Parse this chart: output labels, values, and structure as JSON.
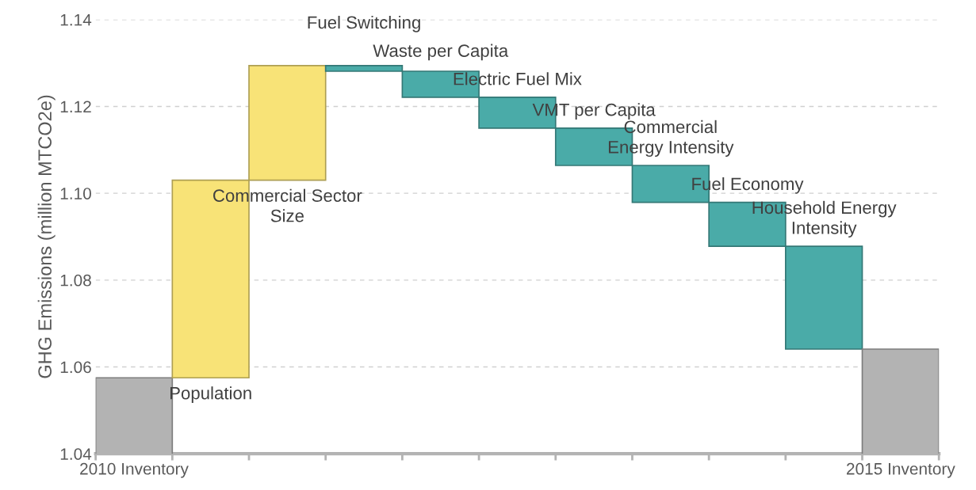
{
  "chart_data": {
    "type": "bar",
    "ylabel": "GHG Emissions (million MTCO2e)",
    "categories": [
      "2010 Inventory",
      null,
      null,
      null,
      null,
      null,
      null,
      null,
      null,
      null,
      "2015 Inventory"
    ],
    "annotations": [
      "Population",
      "Commercial Sector\nSize",
      "Fuel Switching",
      "Waste per Capita",
      "Electric Fuel Mix",
      "VMT per Capita",
      "Commercial\nEnergy Intensity",
      "Fuel Economy",
      "Household Energy\nIntensity"
    ],
    "values": [
      1.0575,
      0.0455,
      0.0264,
      -0.0013,
      -0.006,
      -0.0071,
      -0.0086,
      -0.0085,
      -0.0101,
      -0.0237,
      1.0641
    ],
    "base": [
      null,
      1.0575,
      1.103,
      1.1294,
      1.1281,
      1.1221,
      1.115,
      1.1064,
      1.0979,
      1.0878,
      null
    ],
    "colors": [
      "#b3b3b3",
      "#f8e377",
      "#f8e377",
      "#4aaba8",
      "#4aaba8",
      "#4aaba8",
      "#4aaba8",
      "#4aaba8",
      "#4aaba8",
      "#4aaba8",
      "#b3b3b3"
    ],
    "ylim": [
      1.04,
      1.14
    ],
    "yticks": [
      {
        "value": 1.04,
        "label": "1.04"
      },
      {
        "value": 1.06,
        "label": "1.06"
      },
      {
        "value": 1.08,
        "label": "1.08"
      },
      {
        "value": 1.1,
        "label": "1.10"
      },
      {
        "value": 1.12,
        "label": "1.12"
      },
      {
        "value": 1.14,
        "label": "1.14"
      }
    ],
    "grid": "y"
  }
}
